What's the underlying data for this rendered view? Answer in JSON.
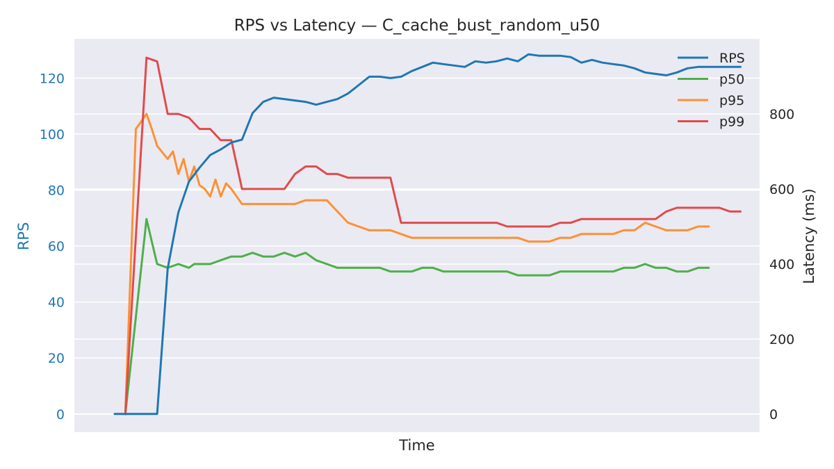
{
  "chart_data": {
    "type": "line",
    "title": "RPS vs Latency — C_cache_bust_random_u50",
    "xlabel": "Time",
    "ylabel_left": "RPS",
    "ylabel_right": "Latency (ms)",
    "ylim_left": [
      -6.5,
      134
    ],
    "ylim_right": [
      -48,
      1000
    ],
    "yticks_left": [
      0,
      20,
      40,
      60,
      80,
      100,
      120
    ],
    "yticks_right": [
      0,
      200,
      400,
      600,
      800
    ],
    "grid": true,
    "legend_position": "top-right",
    "colors": {
      "background": "#eaeaf2",
      "grid": "#ffffff",
      "left_axis": "#1f77b4",
      "text": "#262626"
    },
    "series": [
      {
        "name": "RPS",
        "axis": "left",
        "color": "#1f77b4",
        "x": [
          0,
          1,
          2,
          3,
          4,
          5,
          6,
          7,
          8,
          9,
          10,
          11,
          12,
          13,
          14,
          15,
          16,
          17,
          18,
          19,
          20,
          21,
          22,
          23,
          24,
          25,
          26,
          27,
          28,
          29,
          30,
          31,
          32,
          33,
          34,
          35,
          36,
          37,
          38,
          39,
          40,
          41,
          42,
          43,
          44,
          45,
          46,
          47,
          48,
          49,
          50,
          51,
          52,
          53,
          54,
          55,
          56,
          57,
          58,
          59
        ],
        "values": [
          0,
          0,
          0,
          0,
          0,
          52,
          72,
          83,
          88,
          92.5,
          94.5,
          97,
          98,
          107.5,
          111.5,
          113,
          112.5,
          112,
          111.5,
          110.5,
          111.5,
          112.5,
          114.5,
          117.5,
          120.5,
          120.5,
          120,
          120.5,
          122.5,
          124,
          125.5,
          125,
          124.5,
          124,
          126,
          125.5,
          126,
          127,
          126,
          128.5,
          128,
          128,
          128,
          127.5,
          125.5,
          126.5,
          125.5,
          125,
          124.5,
          123.5,
          122,
          121.5,
          121,
          122,
          123.5,
          124,
          124,
          124,
          124,
          124
        ]
      },
      {
        "name": "p50",
        "axis": "right",
        "color": "#4daf4a",
        "x": [
          1,
          3,
          3.5,
          4,
          5,
          6,
          6.5,
          7,
          7.5,
          8,
          9,
          10,
          11,
          12,
          13,
          14,
          15,
          16,
          17,
          18,
          19,
          20,
          21,
          22,
          23,
          24,
          25,
          26,
          27,
          28,
          29,
          30,
          31,
          32,
          33,
          34,
          35,
          36,
          37,
          38,
          39,
          40,
          41,
          42,
          43,
          44,
          45,
          46,
          47,
          48,
          49,
          50,
          51,
          52,
          53,
          54,
          55,
          56
        ],
        "values": [
          0,
          520,
          460,
          400,
          390,
          400,
          395,
          390,
          400,
          400,
          400,
          410,
          420,
          420,
          430,
          420,
          420,
          430,
          420,
          430,
          410,
          400,
          390,
          390,
          390,
          390,
          390,
          380,
          380,
          380,
          390,
          390,
          380,
          380,
          380,
          380,
          380,
          380,
          380,
          370,
          370,
          370,
          370,
          380,
          380,
          380,
          380,
          380,
          380,
          390,
          390,
          400,
          390,
          390,
          380,
          380,
          390,
          390
        ]
      },
      {
        "name": "p95",
        "axis": "right",
        "color": "#ff9033",
        "x": [
          1,
          2,
          3,
          3.5,
          4,
          5,
          5.5,
          6,
          6.5,
          7,
          7.5,
          8,
          8.5,
          9,
          9.5,
          10,
          10.5,
          11,
          12,
          13,
          14,
          15,
          16,
          17,
          18,
          19,
          20,
          21,
          22,
          23,
          24,
          25,
          26,
          27,
          28,
          29,
          30,
          31,
          32,
          33,
          34,
          35,
          36,
          37,
          38,
          39,
          40,
          41,
          42,
          43,
          44,
          45,
          46,
          47,
          48,
          49,
          50,
          51,
          52,
          53,
          54,
          55,
          56
        ],
        "values": [
          0,
          760,
          800,
          760,
          715,
          680,
          700,
          640,
          680,
          620,
          660,
          610,
          600,
          580,
          625,
          580,
          615,
          600,
          560,
          560,
          560,
          560,
          560,
          560,
          570,
          570,
          570,
          540,
          510,
          500,
          490,
          490,
          490,
          480,
          470,
          470,
          470,
          470,
          470,
          470,
          470,
          470,
          470,
          470,
          470,
          460,
          460,
          460,
          470,
          470,
          480,
          480,
          480,
          480,
          490,
          490,
          510,
          500,
          490,
          490,
          490,
          500,
          500
        ]
      },
      {
        "name": "p99",
        "axis": "right",
        "color": "#e04b4b",
        "x": [
          1,
          3,
          4,
          5,
          6,
          7,
          8,
          9,
          10,
          11,
          12,
          13,
          14,
          15,
          16,
          17,
          18,
          19,
          20,
          21,
          22,
          23,
          24,
          25,
          26,
          27,
          28,
          29,
          30,
          31,
          32,
          33,
          34,
          35,
          36,
          37,
          38,
          39,
          40,
          41,
          42,
          43,
          44,
          45,
          46,
          47,
          48,
          49,
          50,
          51,
          52,
          53,
          54,
          55,
          56,
          57,
          58,
          59
        ],
        "values": [
          0,
          950,
          940,
          800,
          800,
          790,
          760,
          760,
          730,
          730,
          600,
          600,
          600,
          600,
          600,
          640,
          660,
          660,
          640,
          640,
          630,
          630,
          630,
          630,
          630,
          510,
          510,
          510,
          510,
          510,
          510,
          510,
          510,
          510,
          510,
          500,
          500,
          500,
          500,
          500,
          510,
          510,
          520,
          520,
          520,
          520,
          520,
          520,
          520,
          520,
          540,
          550,
          550,
          550,
          550,
          550,
          540,
          540
        ]
      }
    ],
    "x_range": [
      -3.8,
      60.8
    ]
  }
}
